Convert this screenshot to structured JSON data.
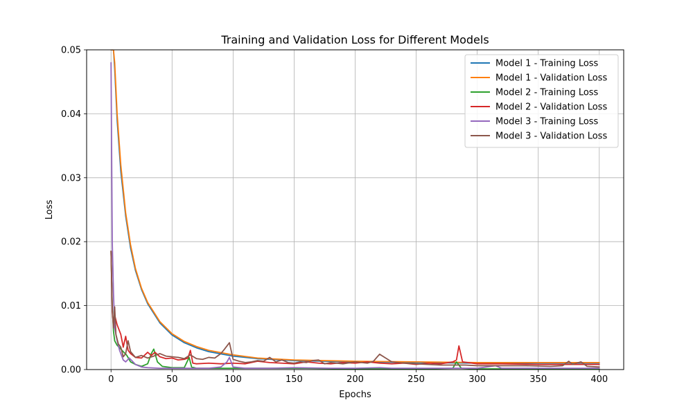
{
  "chart_data": {
    "type": "line",
    "title": "Training and Validation Loss for Different Models",
    "xlabel": "Epochs",
    "ylabel": "Loss",
    "xlim": [
      -20,
      420
    ],
    "ylim": [
      0,
      0.05
    ],
    "xticks": [
      0,
      50,
      100,
      150,
      200,
      250,
      300,
      350,
      400
    ],
    "yticks": [
      0.0,
      0.01,
      0.02,
      0.03,
      0.04,
      0.05
    ],
    "xtick_labels": [
      "0",
      "50",
      "100",
      "150",
      "200",
      "250",
      "300",
      "350",
      "400"
    ],
    "ytick_labels": [
      "0.00",
      "0.01",
      "0.02",
      "0.03",
      "0.04",
      "0.05"
    ],
    "grid": true,
    "legend_position": "upper-right",
    "series": [
      {
        "name": "Model 1 - Training Loss",
        "color": "#1f77b4",
        "x": [
          0,
          1,
          2,
          3,
          5,
          8,
          12,
          16,
          20,
          25,
          30,
          40,
          50,
          60,
          70,
          80,
          100,
          120,
          150,
          200,
          250,
          300,
          350,
          400
        ],
        "y": [
          0.05,
          0.05,
          0.05,
          0.047,
          0.039,
          0.031,
          0.024,
          0.019,
          0.0155,
          0.0125,
          0.0103,
          0.0073,
          0.0054,
          0.0042,
          0.0034,
          0.0028,
          0.0021,
          0.0017,
          0.0014,
          0.0012,
          0.0011,
          0.001,
          0.001,
          0.001
        ]
      },
      {
        "name": "Model 1 - Validation Loss",
        "color": "#ff7f0e",
        "x": [
          0,
          1,
          2,
          3,
          5,
          8,
          12,
          16,
          20,
          25,
          30,
          40,
          50,
          60,
          70,
          80,
          100,
          120,
          150,
          200,
          250,
          300,
          350,
          400
        ],
        "y": [
          0.05,
          0.05,
          0.05,
          0.048,
          0.04,
          0.032,
          0.0245,
          0.0195,
          0.0158,
          0.0127,
          0.0105,
          0.0075,
          0.0056,
          0.0044,
          0.0036,
          0.003,
          0.0023,
          0.0018,
          0.0015,
          0.0013,
          0.0012,
          0.0011,
          0.0011,
          0.0011
        ]
      },
      {
        "name": "Model 2 - Training Loss",
        "color": "#2ca02c",
        "x": [
          0,
          1,
          2,
          3,
          5,
          8,
          10,
          13,
          16,
          20,
          25,
          30,
          33,
          35,
          38,
          42,
          50,
          60,
          64,
          66,
          70,
          80,
          100,
          130,
          160,
          200,
          250,
          280,
          283,
          287,
          300,
          350,
          400
        ],
        "y": [
          0.0185,
          0.01,
          0.006,
          0.0045,
          0.0038,
          0.0032,
          0.0028,
          0.0022,
          0.0012,
          0.0008,
          0.0005,
          0.0009,
          0.0025,
          0.0032,
          0.0012,
          0.0005,
          0.0003,
          0.0003,
          0.0019,
          0.0004,
          0.0002,
          0.0002,
          0.0002,
          0.0002,
          0.0002,
          0.0001,
          0.0001,
          0.0002,
          0.0012,
          0.0002,
          0.0001,
          0.0001,
          0.0001
        ]
      },
      {
        "name": "Model 2 - Validation Loss",
        "color": "#d62728",
        "x": [
          0,
          1,
          2,
          3,
          5,
          8,
          10,
          12,
          14,
          16,
          20,
          25,
          30,
          33,
          36,
          40,
          45,
          50,
          55,
          60,
          63,
          65,
          67,
          70,
          80,
          90,
          100,
          110,
          120,
          130,
          140,
          150,
          160,
          170,
          180,
          190,
          200,
          210,
          220,
          230,
          240,
          250,
          260,
          270,
          280,
          283,
          285,
          288,
          300,
          320,
          350,
          380,
          400
        ],
        "y": [
          0.0185,
          0.009,
          0.0068,
          0.0085,
          0.007,
          0.0055,
          0.0035,
          0.0052,
          0.003,
          0.0025,
          0.0019,
          0.0018,
          0.0027,
          0.0022,
          0.0027,
          0.002,
          0.0017,
          0.0018,
          0.0015,
          0.0016,
          0.0018,
          0.003,
          0.001,
          0.0009,
          0.001,
          0.0009,
          0.001,
          0.0009,
          0.0013,
          0.0011,
          0.001,
          0.0009,
          0.0012,
          0.001,
          0.0009,
          0.0011,
          0.001,
          0.0012,
          0.001,
          0.0009,
          0.001,
          0.0008,
          0.001,
          0.0009,
          0.0012,
          0.0015,
          0.0037,
          0.0012,
          0.0009,
          0.0009,
          0.0008,
          0.0008,
          0.0008
        ]
      },
      {
        "name": "Model 3 - Training Loss",
        "color": "#9467bd",
        "x": [
          0,
          1,
          2,
          3,
          5,
          7,
          10,
          12,
          15,
          20,
          25,
          30,
          40,
          50,
          60,
          70,
          80,
          90,
          95,
          97,
          100,
          110,
          130,
          150,
          180,
          200,
          220,
          230,
          250,
          300,
          315,
          320,
          350,
          400
        ],
        "y": [
          0.048,
          0.02,
          0.012,
          0.0065,
          0.0045,
          0.003,
          0.0015,
          0.0012,
          0.0018,
          0.0008,
          0.0004,
          0.0003,
          0.0002,
          0.0002,
          0.0002,
          0.0002,
          0.0002,
          0.0004,
          0.0012,
          0.0019,
          0.0004,
          0.0002,
          0.0002,
          0.0003,
          0.0002,
          0.0002,
          0.0003,
          0.0002,
          0.0002,
          0.0002,
          0.0006,
          0.0002,
          0.0002,
          0.0002
        ]
      },
      {
        "name": "Model 3 - Validation Loss",
        "color": "#8c564b",
        "x": [
          0,
          1,
          2,
          3,
          4,
          6,
          8,
          10,
          12,
          14,
          16,
          20,
          25,
          30,
          35,
          40,
          45,
          50,
          55,
          60,
          65,
          70,
          75,
          80,
          85,
          90,
          93,
          97,
          100,
          105,
          110,
          115,
          120,
          125,
          130,
          135,
          140,
          145,
          150,
          155,
          160,
          165,
          170,
          175,
          180,
          190,
          200,
          210,
          215,
          220,
          225,
          230,
          240,
          250,
          260,
          270,
          280,
          290,
          300,
          320,
          340,
          360,
          370,
          375,
          378,
          385,
          390,
          400
        ],
        "y": [
          0.0185,
          0.0095,
          0.0065,
          0.0098,
          0.0055,
          0.004,
          0.0035,
          0.002,
          0.0025,
          0.0045,
          0.0028,
          0.0019,
          0.0022,
          0.0018,
          0.0021,
          0.0025,
          0.0021,
          0.002,
          0.0019,
          0.0017,
          0.0023,
          0.0017,
          0.0016,
          0.0019,
          0.0018,
          0.0025,
          0.0032,
          0.0042,
          0.0016,
          0.0013,
          0.0011,
          0.0012,
          0.0014,
          0.0013,
          0.0019,
          0.0012,
          0.0015,
          0.0011,
          0.001,
          0.0012,
          0.0011,
          0.0014,
          0.0015,
          0.0009,
          0.0011,
          0.0009,
          0.0012,
          0.001,
          0.0013,
          0.0024,
          0.0018,
          0.0012,
          0.001,
          0.0009,
          0.0008,
          0.0007,
          0.0007,
          0.0007,
          0.0006,
          0.0006,
          0.0006,
          0.0005,
          0.0006,
          0.0013,
          0.0008,
          0.0012,
          0.0005,
          0.0004
        ]
      }
    ]
  }
}
